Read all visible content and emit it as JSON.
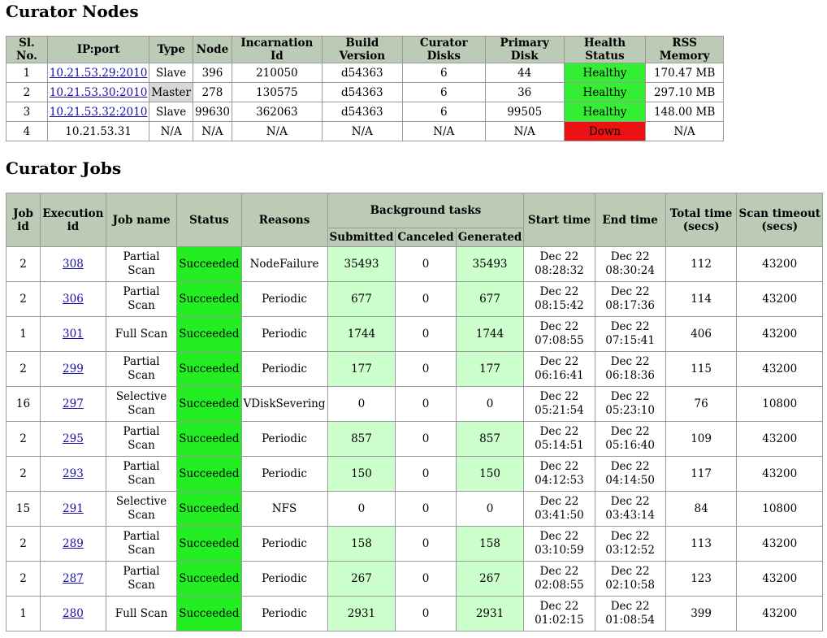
{
  "nodes_section": {
    "title": "Curator Nodes",
    "headers": [
      "Sl. No.",
      "IP:port",
      "Type",
      "Node",
      "Incarnation Id",
      "Build Version",
      "Curator Disks",
      "Primary Disk",
      "Health Status",
      "RSS Memory"
    ],
    "rows": [
      {
        "sl": "1",
        "ip": "10.21.53.29:2010",
        "ip_link": true,
        "type": "Slave",
        "node": "396",
        "incarnation": "210050",
        "build": "d54363",
        "disks": "6",
        "primary": "44",
        "health": "Healthy",
        "rss": "170.47 MB"
      },
      {
        "sl": "2",
        "ip": "10.21.53.30:2010",
        "ip_link": true,
        "type": "Master",
        "node": "278",
        "incarnation": "130575",
        "build": "d54363",
        "disks": "6",
        "primary": "36",
        "health": "Healthy",
        "rss": "297.10 MB"
      },
      {
        "sl": "3",
        "ip": "10.21.53.32:2010",
        "ip_link": true,
        "type": "Slave",
        "node": "99630",
        "incarnation": "362063",
        "build": "d54363",
        "disks": "6",
        "primary": "99505",
        "health": "Healthy",
        "rss": "148.00 MB"
      },
      {
        "sl": "4",
        "ip": "10.21.53.31",
        "ip_link": false,
        "type": "N/A",
        "node": "N/A",
        "incarnation": "N/A",
        "build": "N/A",
        "disks": "N/A",
        "primary": "N/A",
        "health": "Down",
        "rss": "N/A"
      }
    ]
  },
  "jobs_section": {
    "title": "Curator Jobs",
    "headers": {
      "job_id": "Job id",
      "execution_id": "Execution id",
      "job_name": "Job name",
      "status": "Status",
      "reasons": "Reasons",
      "background_tasks": "Background tasks",
      "submitted": "Submitted",
      "canceled": "Canceled",
      "generated": "Generated",
      "start_time": "Start time",
      "end_time": "End time",
      "total_time": "Total time (secs)",
      "scan_timeout": "Scan timeout (secs)"
    },
    "rows": [
      {
        "job_id": "2",
        "exec_id": "308",
        "name": "Partial Scan",
        "status": "Succeeded",
        "reason": "NodeFailure",
        "submitted": "35493",
        "canceled": "0",
        "generated": "35493",
        "start_date": "Dec 22",
        "start_time": "08:28:32",
        "end_date": "Dec 22",
        "end_time": "08:30:24",
        "total": "112",
        "timeout": "43200"
      },
      {
        "job_id": "2",
        "exec_id": "306",
        "name": "Partial Scan",
        "status": "Succeeded",
        "reason": "Periodic",
        "submitted": "677",
        "canceled": "0",
        "generated": "677",
        "start_date": "Dec 22",
        "start_time": "08:15:42",
        "end_date": "Dec 22",
        "end_time": "08:17:36",
        "total": "114",
        "timeout": "43200"
      },
      {
        "job_id": "1",
        "exec_id": "301",
        "name": "Full Scan",
        "status": "Succeeded",
        "reason": "Periodic",
        "submitted": "1744",
        "canceled": "0",
        "generated": "1744",
        "start_date": "Dec 22",
        "start_time": "07:08:55",
        "end_date": "Dec 22",
        "end_time": "07:15:41",
        "total": "406",
        "timeout": "43200"
      },
      {
        "job_id": "2",
        "exec_id": "299",
        "name": "Partial Scan",
        "status": "Succeeded",
        "reason": "Periodic",
        "submitted": "177",
        "canceled": "0",
        "generated": "177",
        "start_date": "Dec 22",
        "start_time": "06:16:41",
        "end_date": "Dec 22",
        "end_time": "06:18:36",
        "total": "115",
        "timeout": "43200"
      },
      {
        "job_id": "16",
        "exec_id": "297",
        "name": "Selective Scan",
        "status": "Succeeded",
        "reason": "VDiskSevering",
        "submitted": "0",
        "canceled": "0",
        "generated": "0",
        "start_date": "Dec 22",
        "start_time": "05:21:54",
        "end_date": "Dec 22",
        "end_time": "05:23:10",
        "total": "76",
        "timeout": "10800"
      },
      {
        "job_id": "2",
        "exec_id": "295",
        "name": "Partial Scan",
        "status": "Succeeded",
        "reason": "Periodic",
        "submitted": "857",
        "canceled": "0",
        "generated": "857",
        "start_date": "Dec 22",
        "start_time": "05:14:51",
        "end_date": "Dec 22",
        "end_time": "05:16:40",
        "total": "109",
        "timeout": "43200"
      },
      {
        "job_id": "2",
        "exec_id": "293",
        "name": "Partial Scan",
        "status": "Succeeded",
        "reason": "Periodic",
        "submitted": "150",
        "canceled": "0",
        "generated": "150",
        "start_date": "Dec 22",
        "start_time": "04:12:53",
        "end_date": "Dec 22",
        "end_time": "04:14:50",
        "total": "117",
        "timeout": "43200"
      },
      {
        "job_id": "15",
        "exec_id": "291",
        "name": "Selective Scan",
        "status": "Succeeded",
        "reason": "NFS",
        "submitted": "0",
        "canceled": "0",
        "generated": "0",
        "start_date": "Dec 22",
        "start_time": "03:41:50",
        "end_date": "Dec 22",
        "end_time": "03:43:14",
        "total": "84",
        "timeout": "10800"
      },
      {
        "job_id": "2",
        "exec_id": "289",
        "name": "Partial Scan",
        "status": "Succeeded",
        "reason": "Periodic",
        "submitted": "158",
        "canceled": "0",
        "generated": "158",
        "start_date": "Dec 22",
        "start_time": "03:10:59",
        "end_date": "Dec 22",
        "end_time": "03:12:52",
        "total": "113",
        "timeout": "43200"
      },
      {
        "job_id": "2",
        "exec_id": "287",
        "name": "Partial Scan",
        "status": "Succeeded",
        "reason": "Periodic",
        "submitted": "267",
        "canceled": "0",
        "generated": "267",
        "start_date": "Dec 22",
        "start_time": "02:08:55",
        "end_date": "Dec 22",
        "end_time": "02:10:58",
        "total": "123",
        "timeout": "43200"
      },
      {
        "job_id": "1",
        "exec_id": "280",
        "name": "Full Scan",
        "status": "Succeeded",
        "reason": "Periodic",
        "submitted": "2931",
        "canceled": "0",
        "generated": "2931",
        "start_date": "Dec 22",
        "start_time": "01:02:15",
        "end_date": "Dec 22",
        "end_time": "01:08:54",
        "total": "399",
        "timeout": "43200"
      }
    ]
  },
  "colors": {
    "header_bg": "#bccbb6",
    "healthy": "#33ee33",
    "down": "#ee1111",
    "succeeded": "#22ee22",
    "light_green": "#ccffcc",
    "master_bg": "#d8d8d8",
    "link": "#1a0dab"
  }
}
